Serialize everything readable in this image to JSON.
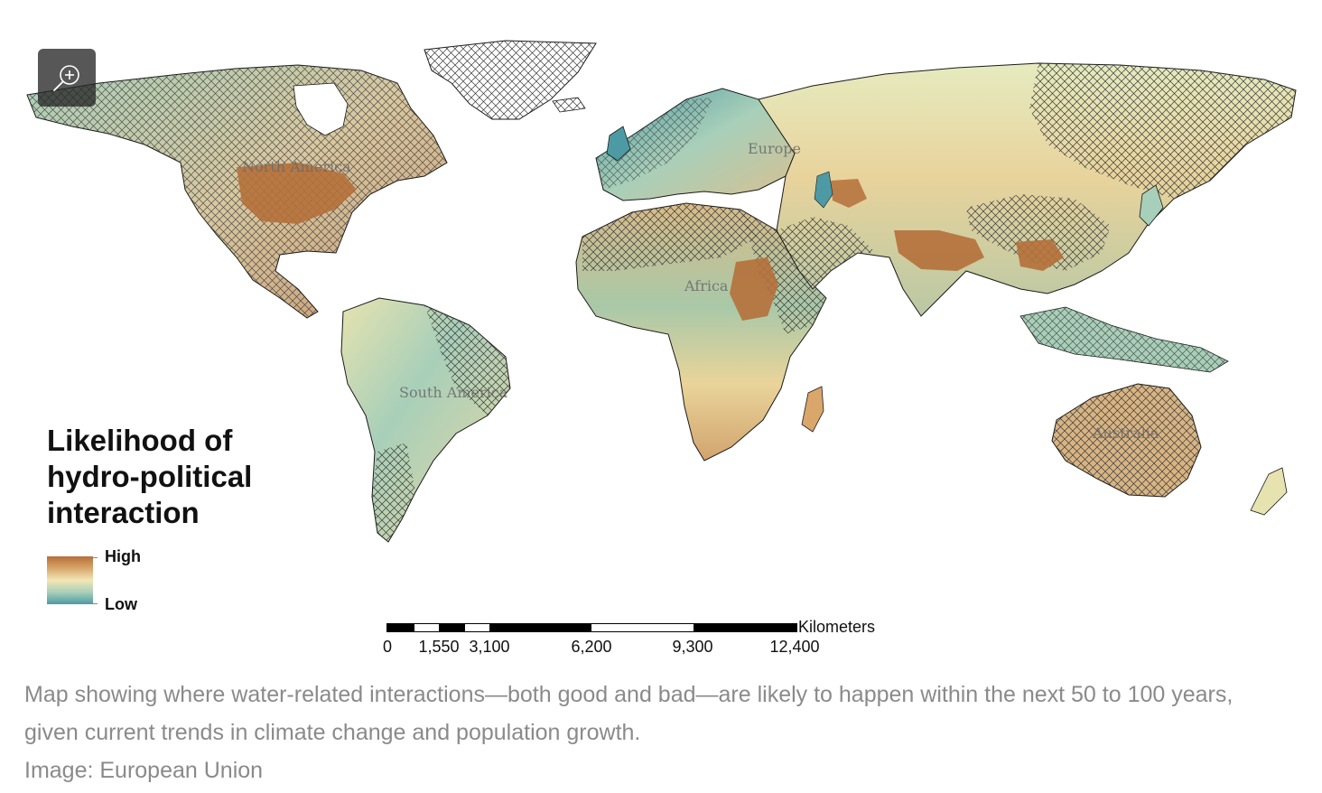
{
  "map": {
    "region_labels": {
      "north_america": "North America",
      "europe": "Europe",
      "africa": "Africa",
      "south_america": "South America",
      "australia": "Australia"
    },
    "colors": {
      "high": "#b5703a",
      "mid_high": "#d9a66b",
      "mid": "#f2e7b5",
      "mid_low": "#a8cfb9",
      "low": "#4e9aa4",
      "hatch": "#3a3a3a",
      "border": "#1a1a1a"
    }
  },
  "zoom_control": {
    "icon": "zoom-in-icon"
  },
  "legend": {
    "title_lines": [
      "Likelihood of",
      "hydro-political",
      "interaction"
    ],
    "high_label": "High",
    "low_label": "Low"
  },
  "scale_bar": {
    "unit": "Kilometers",
    "labels": [
      "0",
      "1,550",
      "3,100",
      "6,200",
      "9,300",
      "12,400"
    ]
  },
  "caption": {
    "text": "Map showing where water-related interactions—both good and bad—are likely to happen within the next 50 to 100 years, given current trends in climate change and population growth.",
    "credit": "Image: European Union"
  }
}
